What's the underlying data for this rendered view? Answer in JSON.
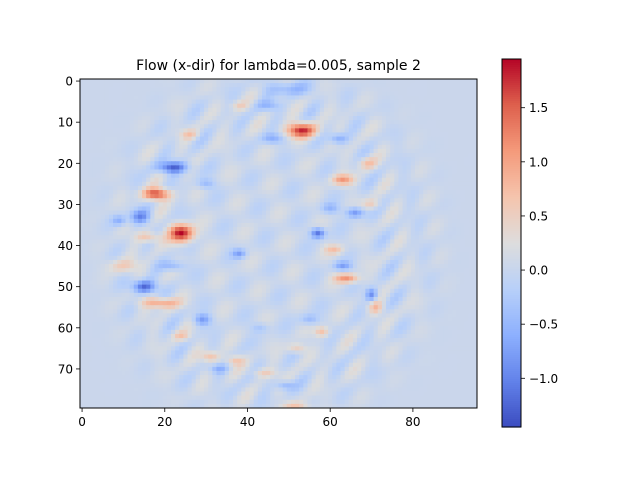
{
  "chart_data": {
    "type": "heatmap",
    "title": "Flow (x-dir) for lambda=0.005, sample 2",
    "xlabel": "",
    "ylabel": "",
    "x_extent": [
      -0.5,
      95.5
    ],
    "y_extent": [
      79.5,
      -0.5
    ],
    "x_ticks": [
      0,
      20,
      40,
      60,
      80
    ],
    "y_ticks": [
      0,
      10,
      20,
      30,
      40,
      50,
      60,
      70
    ],
    "grid": false,
    "colormap": "coolwarm",
    "value_range": [
      -1.45,
      1.95
    ],
    "colorbar_ticks": [
      {
        "value": 1.5,
        "label": "1.5"
      },
      {
        "value": 1.0,
        "label": "1.0"
      },
      {
        "value": 0.5,
        "label": "0.5"
      },
      {
        "value": 0.0,
        "label": "0.0"
      },
      {
        "value": -0.5,
        "label": "−0.5"
      },
      {
        "value": -1.0,
        "label": "−1.0"
      }
    ],
    "ellipse": {
      "cx": 46,
      "cy": 40,
      "rx": 37,
      "ry": 40
    },
    "features": [
      {
        "x": 53,
        "y": 12,
        "v": 1.7,
        "sx": 2.5,
        "sy": 1.2
      },
      {
        "x": 18,
        "y": 27.5,
        "v": 1.65,
        "sx": 2.2,
        "sy": 1.0
      },
      {
        "x": 24,
        "y": 37,
        "v": 1.9,
        "sx": 2.0,
        "sy": 1.5
      },
      {
        "x": 19,
        "y": 54,
        "v": 1.0,
        "sx": 3.0,
        "sy": 0.9
      },
      {
        "x": 16,
        "y": 38,
        "v": 0.7,
        "sx": 2.0,
        "sy": 0.9
      },
      {
        "x": 64,
        "y": 48,
        "v": 1.1,
        "sx": 2.0,
        "sy": 0.8
      },
      {
        "x": 63,
        "y": 24,
        "v": 1.0,
        "sx": 1.8,
        "sy": 0.9
      },
      {
        "x": 69,
        "y": 20,
        "v": 0.6,
        "sx": 1.5,
        "sy": 1.0
      },
      {
        "x": 61,
        "y": 41,
        "v": 0.6,
        "sx": 1.6,
        "sy": 0.8
      },
      {
        "x": 71,
        "y": 55,
        "v": 0.7,
        "sx": 1.2,
        "sy": 1.2
      },
      {
        "x": 10,
        "y": 45,
        "v": 0.5,
        "sx": 2.5,
        "sy": 1.2
      },
      {
        "x": 31,
        "y": 67,
        "v": 0.7,
        "sx": 1.5,
        "sy": 0.9
      },
      {
        "x": 37,
        "y": 68,
        "v": 0.6,
        "sx": 1.5,
        "sy": 0.8
      },
      {
        "x": 52,
        "y": 65,
        "v": 0.6,
        "sx": 1.5,
        "sy": 0.8
      },
      {
        "x": 58,
        "y": 61,
        "v": 0.7,
        "sx": 1.2,
        "sy": 0.9
      },
      {
        "x": 44,
        "y": 71,
        "v": 0.5,
        "sx": 2.0,
        "sy": 0.8
      },
      {
        "x": 52,
        "y": 79,
        "v": 0.5,
        "sx": 2.5,
        "sy": 0.7
      },
      {
        "x": 24,
        "y": 62,
        "v": 0.5,
        "sx": 1.5,
        "sy": 0.8
      },
      {
        "x": 38,
        "y": 6,
        "v": 0.4,
        "sx": 1.5,
        "sy": 0.8
      },
      {
        "x": 26,
        "y": 13,
        "v": 0.5,
        "sx": 1.5,
        "sy": 0.8
      },
      {
        "x": 70,
        "y": 30,
        "v": 0.5,
        "sx": 1.5,
        "sy": 0.9
      },
      {
        "x": 22,
        "y": 21,
        "v": -1.3,
        "sx": 2.5,
        "sy": 1.0
      },
      {
        "x": 15,
        "y": 50,
        "v": -1.3,
        "sx": 2.0,
        "sy": 1.1
      },
      {
        "x": 57,
        "y": 37,
        "v": -1.2,
        "sx": 1.2,
        "sy": 0.9
      },
      {
        "x": 14,
        "y": 33,
        "v": -0.9,
        "sx": 1.8,
        "sy": 1.2
      },
      {
        "x": 66,
        "y": 32,
        "v": -0.9,
        "sx": 1.5,
        "sy": 0.9
      },
      {
        "x": 70,
        "y": 52,
        "v": -1.0,
        "sx": 1.0,
        "sy": 1.2
      },
      {
        "x": 63,
        "y": 45,
        "v": -0.7,
        "sx": 1.5,
        "sy": 0.8
      },
      {
        "x": 29,
        "y": 58,
        "v": -0.8,
        "sx": 1.5,
        "sy": 1.0
      },
      {
        "x": 38,
        "y": 42,
        "v": -0.7,
        "sx": 1.2,
        "sy": 0.8
      },
      {
        "x": 45,
        "y": 6,
        "v": -0.5,
        "sx": 2.0,
        "sy": 0.9
      },
      {
        "x": 50,
        "y": 2,
        "v": -0.5,
        "sx": 4.0,
        "sy": 1.2
      },
      {
        "x": 62,
        "y": 14,
        "v": -0.7,
        "sx": 1.5,
        "sy": 0.9
      },
      {
        "x": 46,
        "y": 14,
        "v": -0.6,
        "sx": 1.8,
        "sy": 0.9
      },
      {
        "x": 30,
        "y": 25,
        "v": -0.5,
        "sx": 1.5,
        "sy": 0.9
      },
      {
        "x": 9,
        "y": 34,
        "v": -0.6,
        "sx": 1.2,
        "sy": 0.9
      },
      {
        "x": 22,
        "y": 45,
        "v": -0.6,
        "sx": 2.0,
        "sy": 0.9
      },
      {
        "x": 33,
        "y": 70,
        "v": -0.5,
        "sx": 1.5,
        "sy": 0.8
      },
      {
        "x": 49,
        "y": 74,
        "v": -0.6,
        "sx": 1.5,
        "sy": 0.8
      },
      {
        "x": 55,
        "y": 58,
        "v": -0.5,
        "sx": 1.5,
        "sy": 0.9
      },
      {
        "x": 43,
        "y": 60,
        "v": -0.4,
        "sx": 1.5,
        "sy": 0.9
      },
      {
        "x": 60,
        "y": 31,
        "v": -0.5,
        "sx": 1.5,
        "sy": 0.9
      }
    ]
  }
}
